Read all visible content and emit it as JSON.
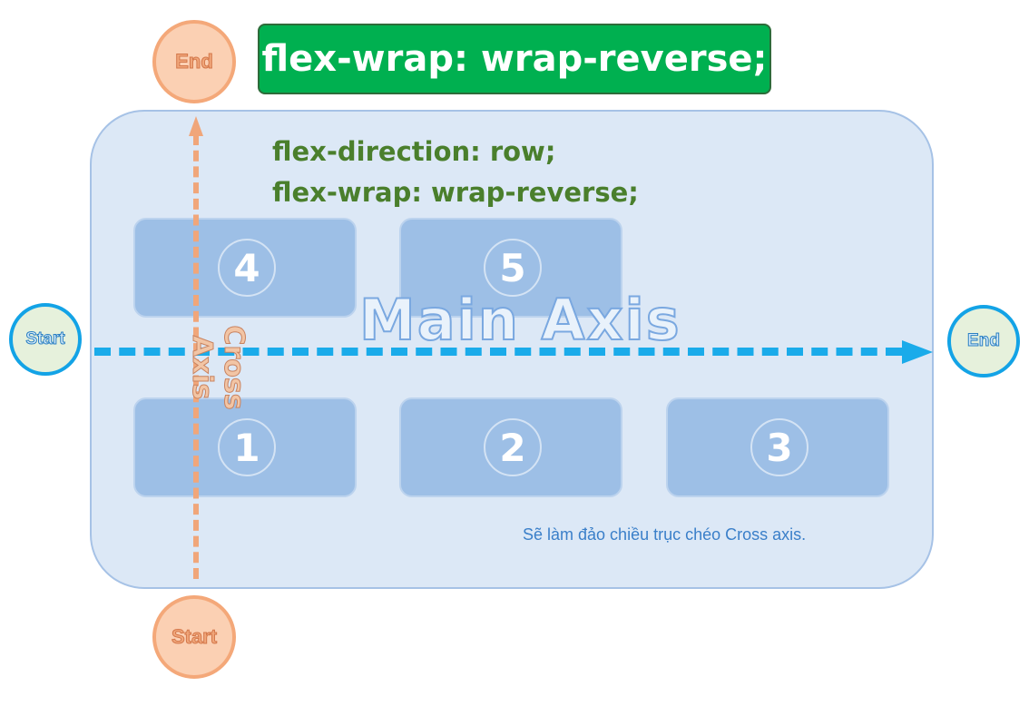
{
  "banner": {
    "text": "flex-wrap: wrap-reverse;"
  },
  "css_lines": [
    "flex-direction: row;",
    "flex-wrap: wrap-reverse;"
  ],
  "items": [
    "1",
    "2",
    "3",
    "4",
    "5"
  ],
  "main_axis": {
    "label": "Main Axis",
    "start": "Start",
    "end": "End"
  },
  "cross_axis": {
    "label": "Cross Axis",
    "start": "Start",
    "end": "End"
  },
  "caption": "Sẽ làm đảo chiều trục chéo Cross axis.",
  "colors": {
    "banner": "#00b050",
    "container": "#dce8f6",
    "item": "#9dbfe6",
    "main_axis": "#1aabea",
    "cross_axis": "#f0a67a",
    "css_text": "#4a7f2c"
  }
}
